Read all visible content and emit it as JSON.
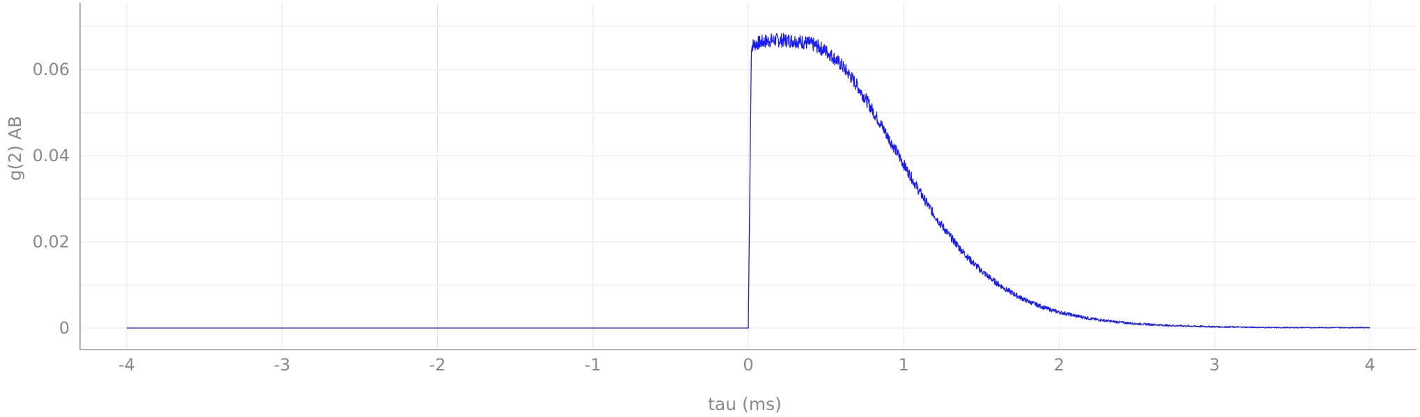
{
  "chart_data": {
    "type": "line",
    "xlabel": "tau (ms)",
    "ylabel": "g(2) AB",
    "xlim": [
      -4.3,
      4.3
    ],
    "ylim": [
      -0.005,
      0.0755
    ],
    "x_ticks": [
      -4,
      -3,
      -2,
      -1,
      0,
      1,
      2,
      3,
      4
    ],
    "x_tick_labels": [
      "-4",
      "-3",
      "-2",
      "-1",
      "0",
      "1",
      "2",
      "3",
      "4"
    ],
    "y_ticks": [
      0,
      0.02,
      0.04,
      0.06
    ],
    "y_tick_labels": [
      "0",
      "0.02",
      "0.04",
      "0.06"
    ],
    "y_minor_grid": [
      0.01,
      0.03,
      0.05,
      0.07
    ],
    "grid": true,
    "legend": "none",
    "series_color": "#1a1aff",
    "series": [
      {
        "x": [
          -4,
          -3,
          -2,
          -1,
          -0.05,
          0,
          0.02,
          0.05,
          0.1,
          0.15,
          0.2,
          0.25,
          0.3,
          0.35,
          0.4,
          0.45,
          0.5,
          0.55,
          0.6,
          0.65,
          0.7,
          0.75,
          0.8,
          0.85,
          0.9,
          0.95,
          1.0,
          1.05,
          1.1,
          1.15,
          1.2,
          1.25,
          1.3,
          1.35,
          1.4,
          1.45,
          1.5,
          1.55,
          1.6,
          1.65,
          1.7,
          1.75,
          1.8,
          1.85,
          1.9,
          1.95,
          2.0,
          2.1,
          2.2,
          2.3,
          2.4,
          2.5,
          2.6,
          2.7,
          2.8,
          2.9,
          3.0,
          3.2,
          3.4,
          3.6,
          3.8,
          4.0
        ],
        "y": [
          0,
          0,
          0,
          0,
          0,
          0,
          0.0655,
          0.066,
          0.0665,
          0.0668,
          0.0668,
          0.0668,
          0.0667,
          0.0664,
          0.066,
          0.0653,
          0.0643,
          0.0628,
          0.061,
          0.0588,
          0.0563,
          0.0535,
          0.0505,
          0.0475,
          0.0443,
          0.0412,
          0.038,
          0.0349,
          0.0318,
          0.0289,
          0.0261,
          0.0236,
          0.0212,
          0.019,
          0.0169,
          0.015,
          0.0133,
          0.0118,
          0.0104,
          0.0092,
          0.0081,
          0.0071,
          0.0062,
          0.0055,
          0.0048,
          0.0042,
          0.0037,
          0.0029,
          0.0022,
          0.0017,
          0.0013,
          0.001,
          0.0008,
          0.0006,
          0.0005,
          0.0004,
          0.0003,
          0.0002,
          0.0001,
          0.0001,
          0.0001,
          0.0001
        ]
      }
    ]
  }
}
